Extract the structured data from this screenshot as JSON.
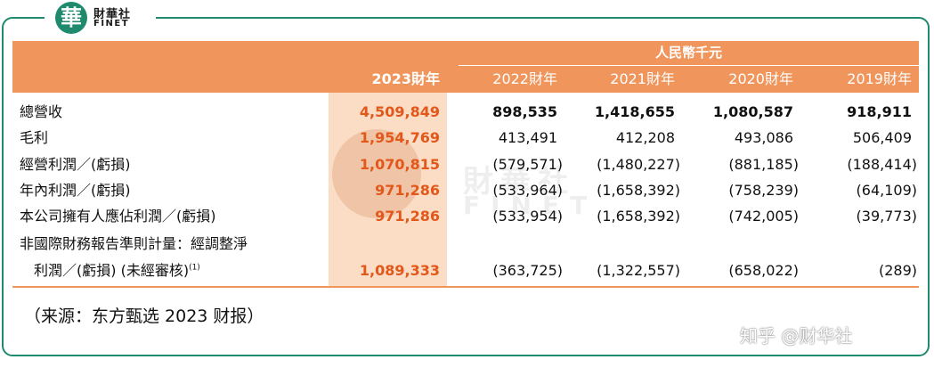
{
  "logo": {
    "glyph": "華",
    "name": "財華社",
    "sub": "FINET"
  },
  "table": {
    "unit": "人民幣千元",
    "years": [
      "2023財年",
      "2022財年",
      "2021財年",
      "2020財年",
      "2019財年"
    ],
    "rows": [
      {
        "label": "總營收",
        "values": [
          "4,509,849",
          "898,535",
          "1,418,655",
          "1,080,587",
          "918,911"
        ],
        "bold": true
      },
      {
        "label": "毛利",
        "values": [
          "1,954,769",
          "413,491",
          "412,208",
          "493,086",
          "506,409"
        ],
        "bold": false
      },
      {
        "label": "經營利潤／(虧損)",
        "values": [
          "1,070,815",
          "(579,571)",
          "(1,480,227)",
          "(881,185)",
          "(188,414)"
        ],
        "bold": false
      },
      {
        "label": "年內利潤／(虧損)",
        "values": [
          "971,286",
          "(533,964)",
          "(1,658,392)",
          "(758,239)",
          "(64,109)"
        ],
        "bold": false
      },
      {
        "label": "本公司擁有人應佔利潤／(虧損)",
        "values": [
          "971,286",
          "(533,954)",
          "(1,658,392)",
          "(742,005)",
          "(39,773)"
        ],
        "bold": false
      },
      {
        "label": "非國際財務報告準則計量：經調整淨",
        "values": [],
        "bold": false
      },
      {
        "label": "利潤／(虧損) (未經審核)",
        "note": "(1)",
        "values": [
          "1,089,333",
          "(363,725)",
          "(1,322,557)",
          "(658,022)",
          "(289)"
        ],
        "bold": false
      }
    ]
  },
  "watermark": {
    "text": "財華社",
    "sub": "FINET"
  },
  "source_note": "（来源：东方甄选 2023 财报）",
  "attribution": "知乎 @财华社",
  "colors": {
    "accent_orange": "#f0955b",
    "highlight_column": "#fbdcc4",
    "highlight_text": "#e2571a",
    "brand_green": "#1f8a6e"
  }
}
